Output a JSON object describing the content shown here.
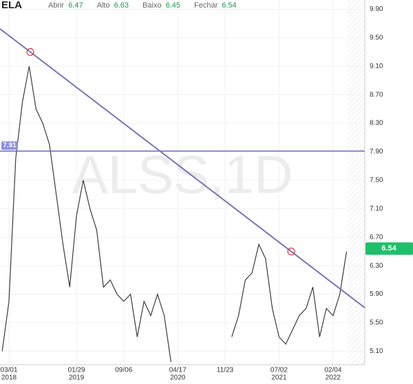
{
  "header": {
    "symbol": "ELA",
    "fields": [
      {
        "label": "Abrir",
        "value": "6.47"
      },
      {
        "label": "Alto",
        "value": "6.63"
      },
      {
        "label": "Baixo",
        "value": "6.45"
      },
      {
        "label": "Fechar",
        "value": "6.54"
      }
    ]
  },
  "chart_data": {
    "type": "line",
    "watermark": "ALSS,1D",
    "color": "#3a3a3a",
    "categories": [
      null,
      "03/01",
      null,
      null,
      null,
      null,
      null,
      null,
      null,
      null,
      null,
      "01/29",
      null,
      null,
      null,
      null,
      null,
      null,
      "09/06",
      null,
      null,
      null,
      null,
      null,
      null,
      null,
      "04/17",
      null,
      null,
      null,
      null,
      null,
      null,
      "11/23",
      null,
      null,
      null,
      null,
      null,
      null,
      null,
      "07/02",
      null,
      null,
      null,
      null,
      null,
      null,
      null,
      "02/04",
      null,
      null
    ],
    "category_years": [
      null,
      "2018",
      null,
      null,
      null,
      null,
      null,
      null,
      null,
      null,
      null,
      "2019",
      null,
      null,
      null,
      null,
      null,
      null,
      null,
      null,
      null,
      null,
      null,
      null,
      null,
      null,
      "2020",
      null,
      null,
      null,
      null,
      null,
      null,
      null,
      null,
      null,
      null,
      null,
      null,
      null,
      null,
      "2021",
      null,
      null,
      null,
      null,
      null,
      null,
      null,
      "2022",
      null,
      null
    ],
    "values": [
      5.1,
      5.8,
      7.8,
      8.6,
      9.1,
      8.5,
      8.3,
      8.0,
      7.3,
      6.6,
      6.0,
      7.0,
      7.5,
      7.1,
      6.8,
      6.0,
      6.1,
      5.9,
      5.8,
      5.9,
      5.3,
      5.8,
      5.6,
      5.9,
      5.6,
      4.95,
      null,
      null,
      null,
      null,
      null,
      null,
      null,
      null,
      5.3,
      5.6,
      6.1,
      6.2,
      6.6,
      6.4,
      5.7,
      5.3,
      5.2,
      5.4,
      5.6,
      5.7,
      6.0,
      5.3,
      5.7,
      5.6,
      5.9,
      6.5
    ],
    "ylim": [
      4.91,
      10.03
    ],
    "yticks": [
      {
        "value": 5.1,
        "label": "5.10"
      },
      {
        "value": 5.5,
        "label": "5.50"
      },
      {
        "value": 5.9,
        "label": "5.90"
      },
      {
        "value": 6.3,
        "label": "6.30"
      },
      {
        "value": 6.7,
        "label": "6.70"
      },
      {
        "value": 7.1,
        "label": "7.10"
      },
      {
        "value": 7.5,
        "label": "7.50"
      },
      {
        "value": 7.9,
        "label": "7.90"
      },
      {
        "value": 8.3,
        "label": "8.30"
      },
      {
        "value": 8.7,
        "label": "8.70"
      },
      {
        "value": 9.1,
        "label": "9.10"
      },
      {
        "value": 9.5,
        "label": "9.50"
      },
      {
        "value": 9.9,
        "label": "9.90"
      }
    ],
    "hline": {
      "value": 7.91,
      "label": "7.91",
      "color": "#6b6bb8"
    },
    "trendline": {
      "x": [
        4.16,
        42.8
      ],
      "y": [
        9.3,
        6.5
      ],
      "color": "#7474b8"
    },
    "last_price": {
      "value": 6.54,
      "label": "6.54",
      "color": "#1fbf6a"
    },
    "grid": true
  }
}
